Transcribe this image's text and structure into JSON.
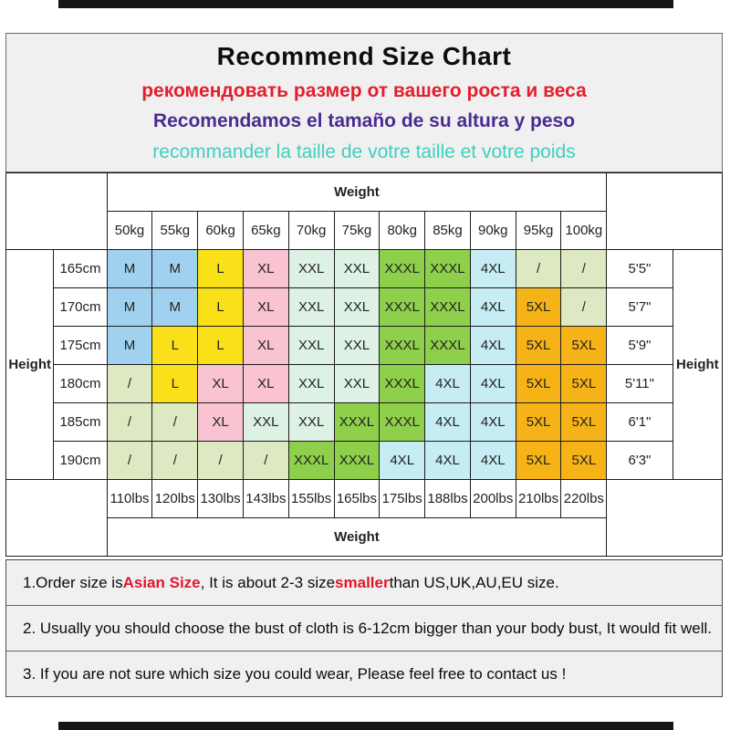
{
  "header": {
    "title": "Recommend Size Chart",
    "subtitle_ru": "рекомендовать размер от вашего роста и веса",
    "subtitle_es": "Recomendamos el tamaño de su altura y peso",
    "subtitle_fr": "recommander la taille de votre taille et votre poids",
    "colors": {
      "title": "#0d0d0d",
      "ru": "#e41e2d",
      "es": "#4b2b90",
      "fr": "#3ed0bd"
    }
  },
  "chart_data": {
    "type": "table",
    "title": "Recommend Size Chart",
    "weight_label": "Weight",
    "height_label": "Height",
    "col_headers_kg": [
      "50kg",
      "55kg",
      "60kg",
      "65kg",
      "70kg",
      "75kg",
      "80kg",
      "85kg",
      "90kg",
      "95kg",
      "100kg"
    ],
    "col_footers_lbs": [
      "110lbs",
      "120lbs",
      "130lbs",
      "143lbs",
      "155lbs",
      "165lbs",
      "175lbs",
      "188lbs",
      "200lbs",
      "210lbs",
      "220lbs"
    ],
    "rows": [
      {
        "cm": "165cm",
        "ft": "5'5\"",
        "sizes": [
          "M",
          "M",
          "L",
          "XL",
          "XXL",
          "XXL",
          "XXXL",
          "XXXL",
          "4XL",
          "/",
          "/"
        ]
      },
      {
        "cm": "170cm",
        "ft": "5'7\"",
        "sizes": [
          "M",
          "M",
          "L",
          "XL",
          "XXL",
          "XXL",
          "XXXL",
          "XXXL",
          "4XL",
          "5XL",
          "/"
        ]
      },
      {
        "cm": "175cm",
        "ft": "5'9\"",
        "sizes": [
          "M",
          "L",
          "L",
          "XL",
          "XXL",
          "XXL",
          "XXXL",
          "XXXL",
          "4XL",
          "5XL",
          "5XL"
        ]
      },
      {
        "cm": "180cm",
        "ft": "5'11\"",
        "sizes": [
          "/",
          "L",
          "XL",
          "XL",
          "XXL",
          "XXL",
          "XXXL",
          "4XL",
          "4XL",
          "5XL",
          "5XL"
        ]
      },
      {
        "cm": "185cm",
        "ft": "6'1\"",
        "sizes": [
          "/",
          "/",
          "XL",
          "XXL",
          "XXL",
          "XXXL",
          "XXXL",
          "4XL",
          "4XL",
          "5XL",
          "5XL"
        ]
      },
      {
        "cm": "190cm",
        "ft": "6'3\"",
        "sizes": [
          "/",
          "/",
          "/",
          "/",
          "XXXL",
          "XXXL",
          "4XL",
          "4XL",
          "4XL",
          "5XL",
          "5XL"
        ]
      }
    ],
    "size_colors": {
      "M": "#a0d2ef",
      "L": "#f9e018",
      "XL": "#f9c3d2",
      "XXL": "#ddf2e5",
      "XXXL": "#8ed04b",
      "4XL": "#c6ecf4",
      "5XL": "#f6b318",
      "/": "#dde9c2"
    }
  },
  "notes": [
    {
      "parts": [
        {
          "text": "1.Order size is ",
          "red": false
        },
        {
          "text": "Asian Size",
          "red": true
        },
        {
          "text": ", It is about 2-3 size ",
          "red": false
        },
        {
          "text": "smaller",
          "red": true
        },
        {
          "text": " than US,UK,AU,EU size.",
          "red": false
        }
      ]
    },
    {
      "parts": [
        {
          "text": "2. Usually you should choose the bust of cloth is 6-12cm bigger than your body bust, It would fit well.",
          "red": false
        }
      ]
    },
    {
      "parts": [
        {
          "text": "3. If you are not sure which size you could wear, Please feel free to contact us !",
          "red": false
        }
      ]
    }
  ],
  "note_red_color": "#e3152b"
}
